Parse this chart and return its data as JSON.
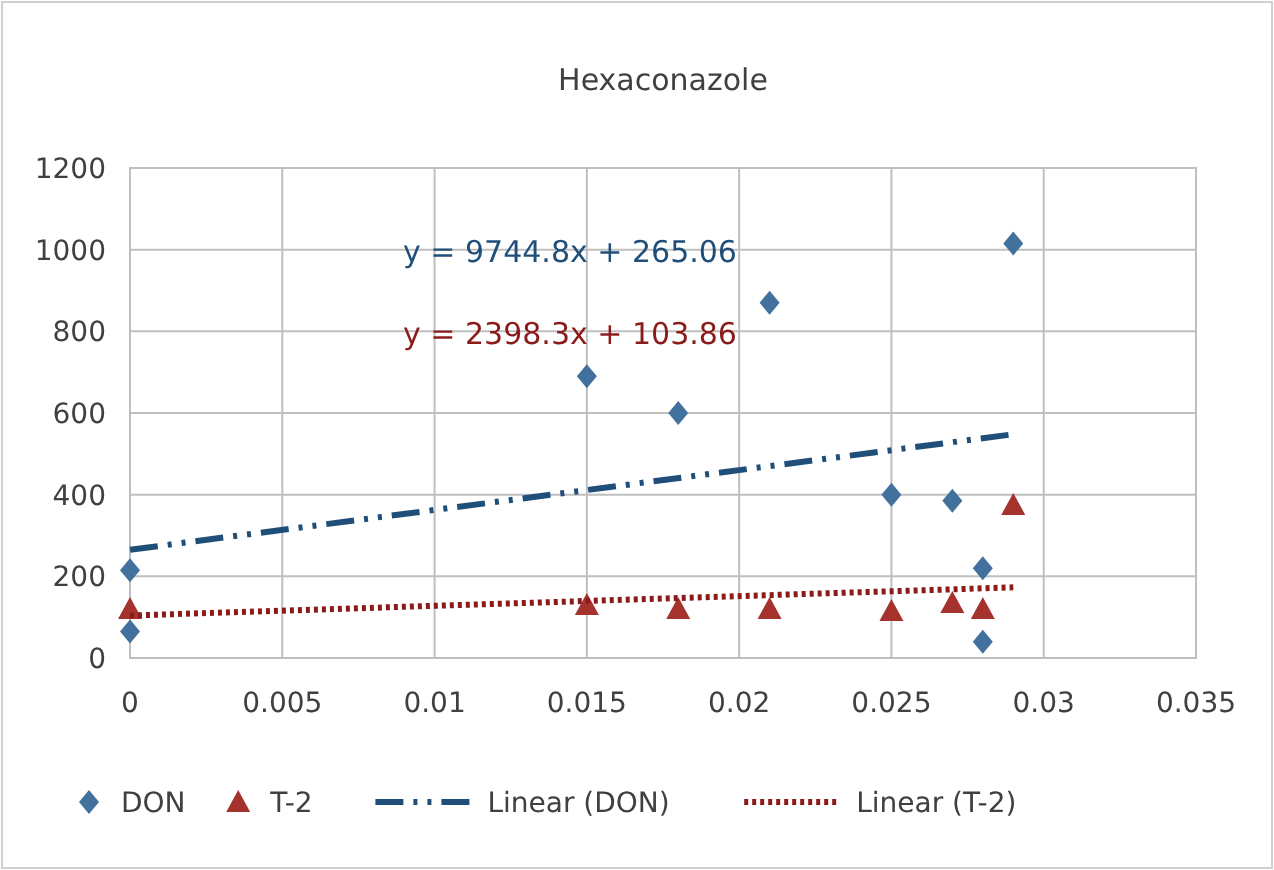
{
  "chart_data": {
    "type": "scatter",
    "title": "Hexaconazole",
    "xlim": [
      0,
      0.035
    ],
    "xticks": [
      0,
      0.005,
      0.01,
      0.015,
      0.02,
      0.025,
      0.03,
      0.035
    ],
    "ylim": [
      0,
      1200
    ],
    "yticks": [
      0,
      200,
      400,
      600,
      800,
      1000,
      1200
    ],
    "grid": true,
    "legend": "bottom",
    "series": [
      {
        "name": "DON",
        "marker": "diamond",
        "color": "#41719c",
        "x": [
          0,
          0,
          0.015,
          0.018,
          0.021,
          0.025,
          0.027,
          0.028,
          0.028,
          0.029
        ],
        "values": [
          215,
          65,
          690,
          600,
          870,
          400,
          385,
          220,
          40,
          1015
        ]
      },
      {
        "name": "T-2",
        "marker": "triangle",
        "color": "#a5322c",
        "x": [
          0,
          0.015,
          0.018,
          0.021,
          0.025,
          0.027,
          0.028,
          0.029
        ],
        "values": [
          120,
          130,
          120,
          120,
          115,
          135,
          120,
          375
        ]
      },
      {
        "name": "Linear (DON)",
        "type": "line",
        "line_style": "dashed",
        "color": "#1f4e79",
        "x": [
          0,
          0.029
        ],
        "values": [
          265,
          548
        ]
      },
      {
        "name": "Linear (T-2)",
        "type": "line",
        "line_style": "dotted",
        "color": "#8b1a1a",
        "x": [
          0,
          0.029
        ],
        "values": [
          104,
          173
        ]
      }
    ],
    "annotations": [
      "y = 9744.8x + 265.06",
      "y = 2398.3x + 103.86"
    ]
  }
}
